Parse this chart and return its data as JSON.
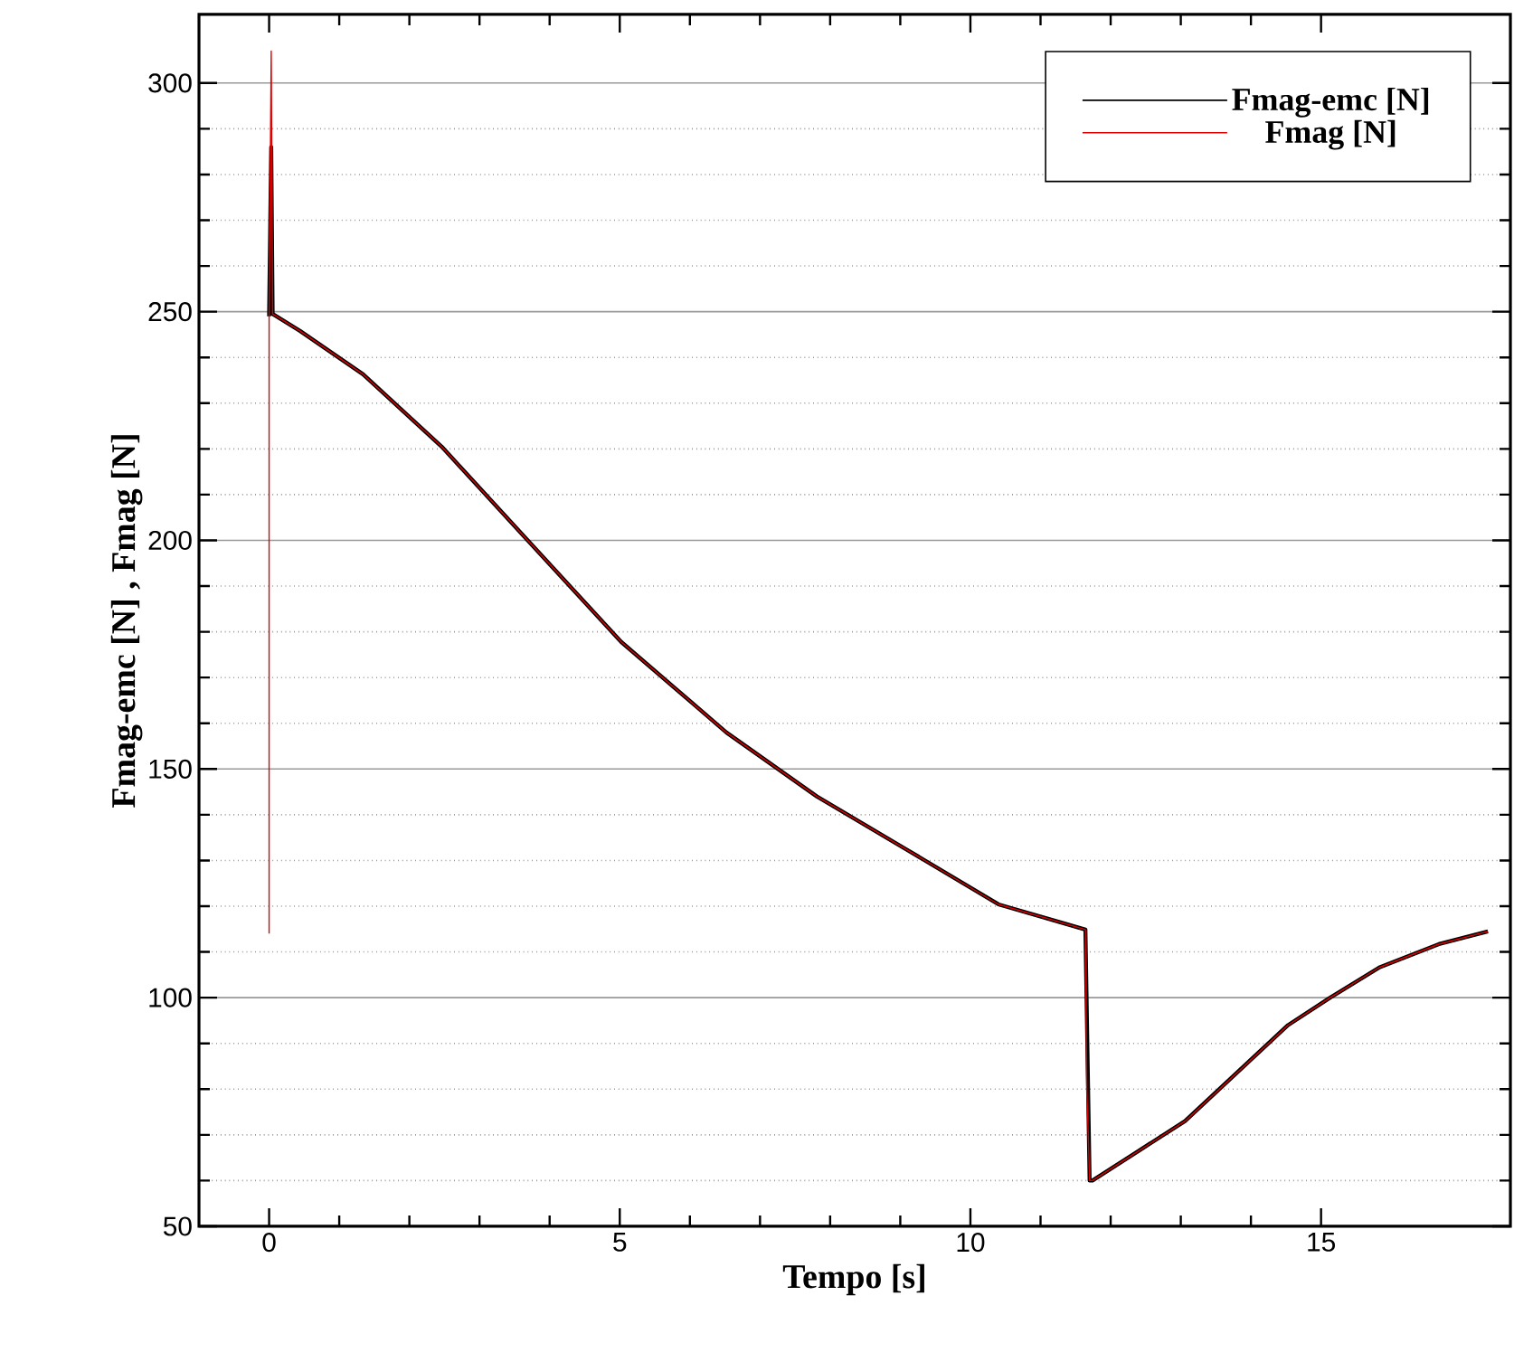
{
  "chart_data": {
    "type": "line",
    "xlabel": "Tempo [s]",
    "ylabel": "Fmag-emc [N] , Fmag [N]",
    "xlim": [
      -1,
      17.7
    ],
    "ylim": [
      50,
      315
    ],
    "xticks": [
      0,
      5,
      10,
      15
    ],
    "yticks": [
      50,
      100,
      150,
      200,
      250,
      300
    ],
    "grid": "y",
    "legend": "top right",
    "series": [
      {
        "name": "Fmag-emc [N]",
        "color": "#000000",
        "x": [
          0,
          0.03,
          0.05,
          0.44,
          1.34,
          2.46,
          3.67,
          5.02,
          6.52,
          7.81,
          9.1,
          10.4,
          11.64,
          11.7,
          11.74,
          13.06,
          14.53,
          15.13,
          15.83,
          16.68,
          17.38
        ],
        "values": [
          249,
          286,
          249.5,
          245.8,
          236.3,
          220.5,
          200.3,
          177.8,
          158,
          144,
          132.3,
          120.4,
          114.9,
          60,
          60,
          73,
          94,
          100,
          106.6,
          111.7,
          114.5
        ]
      },
      {
        "name": "Fmag [N]",
        "color": "#e00000",
        "x": [
          0,
          0,
          0.03,
          0.05,
          0.44,
          1.34,
          2.46,
          3.67,
          5.02,
          6.52,
          7.81,
          9.1,
          10.4,
          11.64,
          11.66,
          11.7,
          11.74,
          13.06,
          14.53,
          15.13,
          15.83,
          16.68,
          17.38
        ],
        "values": [
          114,
          249,
          307,
          249.5,
          245.8,
          236.3,
          220.5,
          200.3,
          177.8,
          158,
          144,
          132.3,
          120.4,
          114.9,
          80,
          60,
          60,
          73,
          94,
          100,
          106.6,
          111.7,
          114.5
        ]
      }
    ]
  }
}
